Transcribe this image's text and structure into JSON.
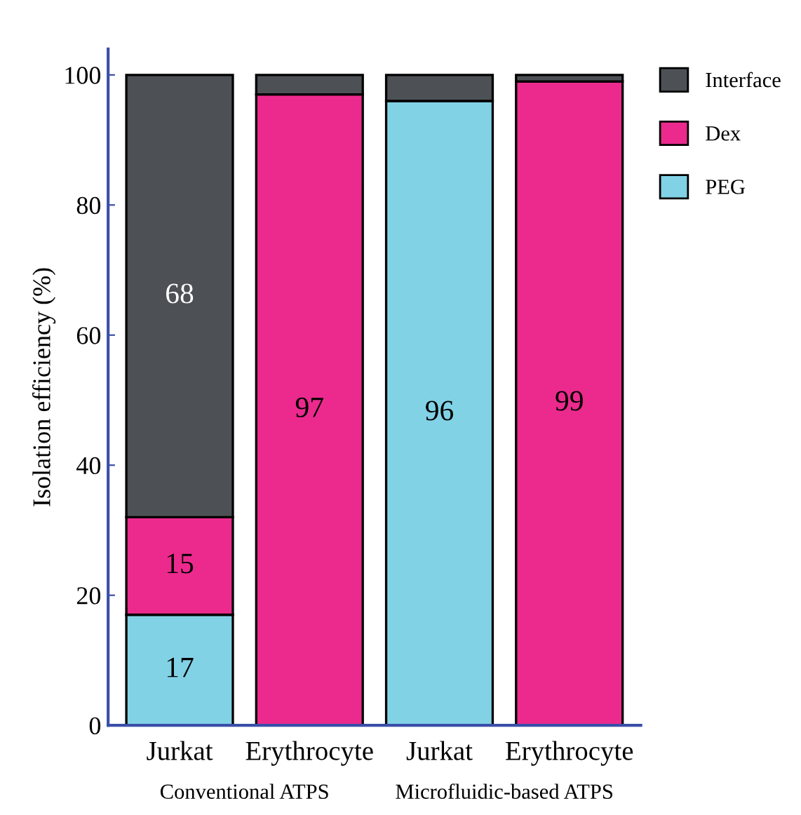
{
  "chart_data": {
    "type": "bar",
    "stacked": true,
    "ylabel": "Isolation efficiency (%)",
    "categories": [
      "Jurkat",
      "Erythrocyte",
      "Jurkat",
      "Erythrocyte"
    ],
    "series": [
      {
        "name": "PEG",
        "color": "#82d2e6",
        "values": [
          17,
          0,
          96,
          0
        ],
        "value_labels": [
          "17",
          null,
          "96",
          null
        ]
      },
      {
        "name": "Dex",
        "color": "#ec2a8e",
        "values": [
          15,
          97,
          0,
          99
        ],
        "value_labels": [
          "15",
          "97",
          null,
          "99"
        ]
      },
      {
        "name": "Interface",
        "color": "#4d5156",
        "values": [
          68,
          3,
          4,
          1
        ],
        "value_labels": [
          "68",
          null,
          null,
          null
        ]
      }
    ],
    "ylim": [
      0,
      104
    ],
    "yticks": [
      0,
      20,
      40,
      60,
      80,
      100
    ],
    "grid": false,
    "legend": "right",
    "annotations": [
      "Conventional ATPS",
      "Microfluidic-based ATPS"
    ]
  }
}
